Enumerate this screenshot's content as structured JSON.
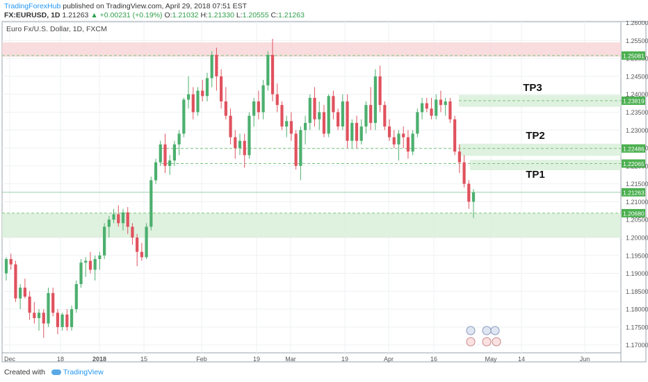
{
  "header": {
    "publisher": "TradingForexHub",
    "published_text": "published on TradingView.com, April 29, 2018 07:51 EST",
    "symbol_line": "FX:EURUSD, 1D",
    "last": "1.21263",
    "change": "▲ +0.00231 (+0.19%)",
    "o_label": "O:",
    "o_val": "1.21032",
    "h_label": "H:",
    "h_val": "1.21330",
    "l_label": "L:",
    "l_val": "1.20555",
    "c_label": "C:",
    "c_val": "1.21263"
  },
  "footer": {
    "created_with": "Created with",
    "brand": "TradingView"
  },
  "colors": {
    "bull": "#4caf6e",
    "bear": "#e0525e",
    "zone_green": "#d9efd9",
    "zone_red": "#f8d6d8",
    "level_line": "#7bc47f",
    "price_label": "#4caf50"
  },
  "chart_data": {
    "type": "candlestick",
    "title": "Euro Fx/U.S. Dollar, 1D, FXCM",
    "ylim": [
      1.168,
      1.2605
    ],
    "y_ticks": [
      "1.26000",
      "1.25500",
      "1.25000",
      "1.24500",
      "1.24000",
      "1.23500",
      "1.23000",
      "1.22500",
      "1.22000",
      "1.21500",
      "1.21000",
      "1.20500",
      "1.20000",
      "1.19500",
      "1.19000",
      "1.18500",
      "1.18000",
      "1.17500",
      "1.17000"
    ],
    "x_ticks": [
      "Dec",
      "18",
      "2018",
      "15",
      "Feb",
      "19",
      "Mar",
      "19",
      "Apr",
      "16",
      "May",
      "14",
      "Jun"
    ],
    "levels": [
      {
        "price": 1.25081,
        "label": "1.25081"
      },
      {
        "price": 1.23819,
        "label": "1.23819"
      },
      {
        "price": 1.22486,
        "label": "1.22486"
      },
      {
        "price": 1.22065,
        "label": "1.22065"
      },
      {
        "price": 1.2068,
        "label": "1.20680"
      }
    ],
    "last_price": {
      "price": 1.21263,
      "label": "1.21263"
    },
    "zones": [
      {
        "kind": "resistance",
        "from": 1.2505,
        "to": 1.2545
      },
      {
        "kind": "support",
        "from": 1.2,
        "to": 1.2068
      },
      {
        "kind": "target",
        "from": 1.2365,
        "to": 1.2398
      },
      {
        "kind": "target",
        "from": 1.2228,
        "to": 1.2262
      },
      {
        "kind": "target",
        "from": 1.2188,
        "to": 1.2217
      }
    ],
    "targets": [
      "TP3",
      "TP2",
      "TP1"
    ],
    "candles": [
      [
        1.19,
        1.1945,
        1.188,
        1.194
      ],
      [
        1.194,
        1.1955,
        1.191,
        1.1925
      ],
      [
        1.1925,
        1.1935,
        1.182,
        1.183
      ],
      [
        1.183,
        1.187,
        1.18,
        1.186
      ],
      [
        1.186,
        1.1885,
        1.183,
        1.1835
      ],
      [
        1.1835,
        1.185,
        1.177,
        1.179
      ],
      [
        1.179,
        1.182,
        1.176,
        1.1775
      ],
      [
        1.1775,
        1.18,
        1.174,
        1.179
      ],
      [
        1.179,
        1.18,
        1.172,
        1.176
      ],
      [
        1.176,
        1.186,
        1.175,
        1.1845
      ],
      [
        1.1845,
        1.186,
        1.178,
        1.179
      ],
      [
        1.179,
        1.18,
        1.173,
        1.175
      ],
      [
        1.175,
        1.179,
        1.174,
        1.1785
      ],
      [
        1.1785,
        1.18,
        1.174,
        1.175
      ],
      [
        1.175,
        1.181,
        1.174,
        1.18
      ],
      [
        1.18,
        1.188,
        1.179,
        1.187
      ],
      [
        1.187,
        1.194,
        1.186,
        1.193
      ],
      [
        1.193,
        1.1945,
        1.189,
        1.1935
      ],
      [
        1.1935,
        1.196,
        1.19,
        1.191
      ],
      [
        1.191,
        1.195,
        1.188,
        1.194
      ],
      [
        1.194,
        1.196,
        1.191,
        1.195
      ],
      [
        1.195,
        1.204,
        1.194,
        1.203
      ],
      [
        1.203,
        1.206,
        1.2,
        1.205
      ],
      [
        1.205,
        1.208,
        1.204,
        1.2065
      ],
      [
        1.2065,
        1.209,
        1.203,
        1.204
      ],
      [
        1.204,
        1.208,
        1.202,
        1.207
      ],
      [
        1.207,
        1.2085,
        1.201,
        1.203
      ],
      [
        1.203,
        1.204,
        1.198,
        1.2
      ],
      [
        1.2,
        1.201,
        1.192,
        1.196
      ],
      [
        1.196,
        1.1985,
        1.1935,
        1.1945
      ],
      [
        1.1945,
        1.204,
        1.194,
        1.203
      ],
      [
        1.203,
        1.217,
        1.202,
        1.216
      ],
      [
        1.216,
        1.222,
        1.215,
        1.221
      ],
      [
        1.221,
        1.227,
        1.22,
        1.226
      ],
      [
        1.226,
        1.229,
        1.218,
        1.22
      ],
      [
        1.22,
        1.223,
        1.2175,
        1.2215
      ],
      [
        1.2215,
        1.227,
        1.22,
        1.226
      ],
      [
        1.226,
        1.23,
        1.223,
        1.229
      ],
      [
        1.229,
        1.239,
        1.228,
        1.2385
      ],
      [
        1.2385,
        1.245,
        1.236,
        1.24
      ],
      [
        1.24,
        1.242,
        1.233,
        1.235
      ],
      [
        1.235,
        1.242,
        1.234,
        1.241
      ],
      [
        1.241,
        1.244,
        1.238,
        1.2395
      ],
      [
        1.2395,
        1.246,
        1.238,
        1.2445
      ],
      [
        1.2445,
        1.252,
        1.242,
        1.251
      ],
      [
        1.251,
        1.253,
        1.241,
        1.245
      ],
      [
        1.245,
        1.247,
        1.236,
        1.238
      ],
      [
        1.238,
        1.242,
        1.233,
        1.234
      ],
      [
        1.234,
        1.236,
        1.226,
        1.228
      ],
      [
        1.228,
        1.23,
        1.222,
        1.225
      ],
      [
        1.225,
        1.229,
        1.223,
        1.227
      ],
      [
        1.227,
        1.229,
        1.2195,
        1.223
      ],
      [
        1.223,
        1.235,
        1.222,
        1.234
      ],
      [
        1.234,
        1.239,
        1.231,
        1.238
      ],
      [
        1.238,
        1.241,
        1.233,
        1.235
      ],
      [
        1.235,
        1.244,
        1.233,
        1.2425
      ],
      [
        1.2425,
        1.252,
        1.241,
        1.251
      ],
      [
        1.251,
        1.2555,
        1.238,
        1.24
      ],
      [
        1.24,
        1.243,
        1.235,
        1.237
      ],
      [
        1.237,
        1.238,
        1.23,
        1.231
      ],
      [
        1.231,
        1.234,
        1.228,
        1.2325
      ],
      [
        1.2325,
        1.235,
        1.227,
        1.229
      ],
      [
        1.229,
        1.23,
        1.219,
        1.22
      ],
      [
        1.22,
        1.231,
        1.216,
        1.23
      ],
      [
        1.23,
        1.234,
        1.226,
        1.232
      ],
      [
        1.232,
        1.24,
        1.23,
        1.239
      ],
      [
        1.239,
        1.242,
        1.231,
        1.233
      ],
      [
        1.233,
        1.238,
        1.23,
        1.235
      ],
      [
        1.235,
        1.237,
        1.228,
        1.229
      ],
      [
        1.229,
        1.24,
        1.228,
        1.2395
      ],
      [
        1.2395,
        1.241,
        1.233,
        1.235
      ],
      [
        1.235,
        1.236,
        1.23,
        1.231
      ],
      [
        1.231,
        1.24,
        1.23,
        1.238
      ],
      [
        1.238,
        1.24,
        1.225,
        1.227
      ],
      [
        1.227,
        1.233,
        1.225,
        1.232
      ],
      [
        1.232,
        1.234,
        1.225,
        1.227
      ],
      [
        1.227,
        1.233,
        1.226,
        1.231
      ],
      [
        1.231,
        1.238,
        1.229,
        1.237
      ],
      [
        1.237,
        1.242,
        1.23,
        1.232
      ],
      [
        1.232,
        1.247,
        1.23,
        1.245
      ],
      [
        1.245,
        1.248,
        1.235,
        1.237
      ],
      [
        1.237,
        1.238,
        1.23,
        1.231
      ],
      [
        1.231,
        1.233,
        1.227,
        1.228
      ],
      [
        1.228,
        1.23,
        1.225,
        1.226
      ],
      [
        1.226,
        1.23,
        1.2215,
        1.229
      ],
      [
        1.229,
        1.231,
        1.225,
        1.228
      ],
      [
        1.228,
        1.23,
        1.222,
        1.224
      ],
      [
        1.224,
        1.23,
        1.223,
        1.229
      ],
      [
        1.229,
        1.236,
        1.228,
        1.235
      ],
      [
        1.235,
        1.239,
        1.233,
        1.2375
      ],
      [
        1.2375,
        1.239,
        1.235,
        1.236
      ],
      [
        1.236,
        1.239,
        1.233,
        1.234
      ],
      [
        1.234,
        1.24,
        1.233,
        1.2385
      ],
      [
        1.2385,
        1.241,
        1.235,
        1.237
      ],
      [
        1.237,
        1.239,
        1.234,
        1.238
      ],
      [
        1.238,
        1.239,
        1.232,
        1.233
      ],
      [
        1.233,
        1.234,
        1.223,
        1.224
      ],
      [
        1.224,
        1.226,
        1.218,
        1.221
      ],
      [
        1.221,
        1.223,
        1.214,
        1.215
      ],
      [
        1.215,
        1.216,
        1.208,
        1.21
      ],
      [
        1.21,
        1.2135,
        1.2055,
        1.2126
      ]
    ]
  }
}
